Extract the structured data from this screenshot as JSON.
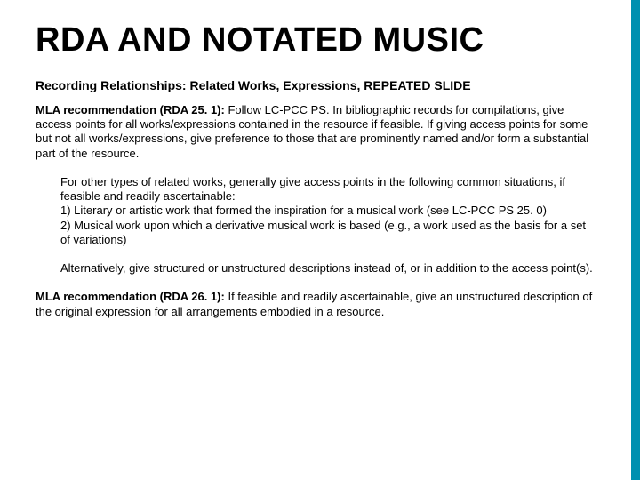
{
  "colors": {
    "accent": "#0090b0",
    "text": "#000000",
    "background": "#ffffff"
  },
  "title": "RDA AND NOTATED MUSIC",
  "subtitle": "Recording Relationships: Related Works, Expressions, REPEATED SLIDE",
  "rec1_lead": "MLA recommendation (RDA 25. 1):",
  "rec1_body": " Follow LC-PCC PS. In bibliographic records for compilations, give access points for all works/expressions contained in the resource if feasible. If giving access points for some but not all works/expressions, give preference to those that are prominently named and/or form a substantial part of the resource.",
  "indent1": "For other types of related works, generally give access points in the following common situations, if feasible and readily ascertainable:\n1) Literary or artistic work that formed the inspiration for a musical work (see LC-PCC PS 25. 0)\n2) Musical work upon which a derivative musical work is based (e.g., a work used as the basis for a set of variations)",
  "indent2": "Alternatively, give structured or unstructured descriptions instead of, or in addition to the access point(s).",
  "rec2_lead": "MLA recommendation (RDA 26. 1):",
  "rec2_body": " If feasible and readily ascertainable, give an unstructured description of the original expression for all arrangements embodied in a resource."
}
